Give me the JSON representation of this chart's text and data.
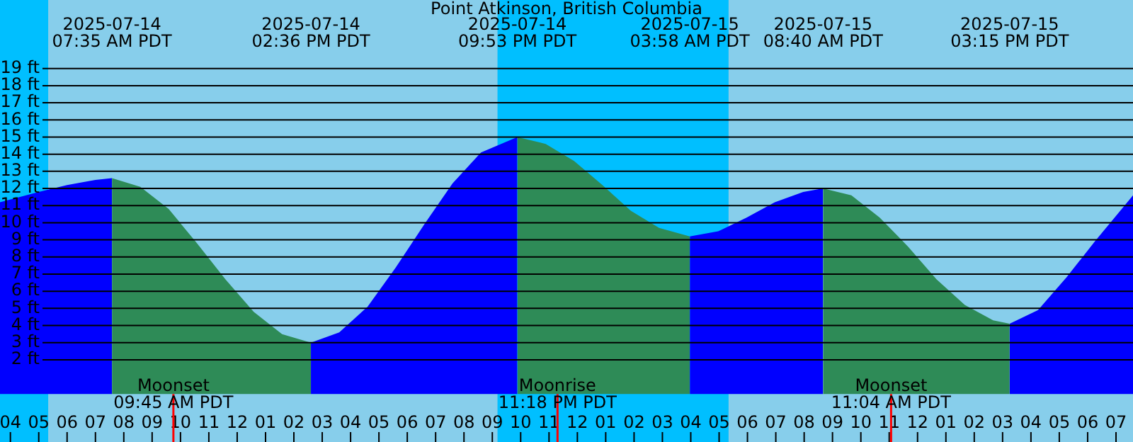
{
  "chart_data": {
    "type": "area",
    "title": "Point Atkinson, British Columbia",
    "xlim": [
      "2025-07-14T03:38",
      "2025-07-15T19:36"
    ],
    "ylim": [
      -2.8,
      23
    ],
    "xticks": [
      {
        "value": "2025-07-14T04:00",
        "label": "04"
      },
      {
        "value": "2025-07-14T05:00",
        "label": "05"
      },
      {
        "value": "2025-07-14T06:00",
        "label": "06"
      },
      {
        "value": "2025-07-14T07:00",
        "label": "07"
      },
      {
        "value": "2025-07-14T08:00",
        "label": "08"
      },
      {
        "value": "2025-07-14T09:00",
        "label": "09"
      },
      {
        "value": "2025-07-14T10:00",
        "label": "10"
      },
      {
        "value": "2025-07-14T11:00",
        "label": "11"
      },
      {
        "value": "2025-07-14T12:00",
        "label": "12"
      },
      {
        "value": "2025-07-14T13:00",
        "label": "01"
      },
      {
        "value": "2025-07-14T14:00",
        "label": "02"
      },
      {
        "value": "2025-07-14T15:00",
        "label": "03"
      },
      {
        "value": "2025-07-14T16:00",
        "label": "04"
      },
      {
        "value": "2025-07-14T17:00",
        "label": "05"
      },
      {
        "value": "2025-07-14T18:00",
        "label": "06"
      },
      {
        "value": "2025-07-14T19:00",
        "label": "07"
      },
      {
        "value": "2025-07-14T20:00",
        "label": "08"
      },
      {
        "value": "2025-07-14T21:00",
        "label": "09"
      },
      {
        "value": "2025-07-14T22:00",
        "label": "10"
      },
      {
        "value": "2025-07-14T23:00",
        "label": "11"
      },
      {
        "value": "2025-07-15T00:00",
        "label": "12"
      },
      {
        "value": "2025-07-15T01:00",
        "label": "01"
      },
      {
        "value": "2025-07-15T02:00",
        "label": "02"
      },
      {
        "value": "2025-07-15T03:00",
        "label": "03"
      },
      {
        "value": "2025-07-15T04:00",
        "label": "04"
      },
      {
        "value": "2025-07-15T05:00",
        "label": "05"
      },
      {
        "value": "2025-07-15T06:00",
        "label": "06"
      },
      {
        "value": "2025-07-15T07:00",
        "label": "07"
      },
      {
        "value": "2025-07-15T08:00",
        "label": "08"
      },
      {
        "value": "2025-07-15T09:00",
        "label": "09"
      },
      {
        "value": "2025-07-15T10:00",
        "label": "10"
      },
      {
        "value": "2025-07-15T11:00",
        "label": "11"
      },
      {
        "value": "2025-07-15T12:00",
        "label": "12"
      },
      {
        "value": "2025-07-15T13:00",
        "label": "01"
      },
      {
        "value": "2025-07-15T14:00",
        "label": "02"
      },
      {
        "value": "2025-07-15T15:00",
        "label": "03"
      },
      {
        "value": "2025-07-15T16:00",
        "label": "04"
      },
      {
        "value": "2025-07-15T17:00",
        "label": "05"
      },
      {
        "value": "2025-07-15T18:00",
        "label": "06"
      },
      {
        "value": "2025-07-15T19:00",
        "label": "07"
      }
    ],
    "yticks": [
      {
        "value": 2,
        "label": "2 ft"
      },
      {
        "value": 3,
        "label": "3 ft"
      },
      {
        "value": 4,
        "label": "4 ft"
      },
      {
        "value": 5,
        "label": "5 ft"
      },
      {
        "value": 6,
        "label": "6 ft"
      },
      {
        "value": 7,
        "label": "7 ft"
      },
      {
        "value": 8,
        "label": "8 ft"
      },
      {
        "value": 9,
        "label": "9 ft"
      },
      {
        "value": 10,
        "label": "10 ft"
      },
      {
        "value": 11,
        "label": "11 ft"
      },
      {
        "value": 12,
        "label": "12 ft"
      },
      {
        "value": 13,
        "label": "13 ft"
      },
      {
        "value": 14,
        "label": "14 ft"
      },
      {
        "value": 15,
        "label": "15 ft"
      },
      {
        "value": 16,
        "label": "16 ft"
      },
      {
        "value": 17,
        "label": "17 ft"
      },
      {
        "value": 18,
        "label": "18 ft"
      },
      {
        "value": 19,
        "label": "19 ft"
      }
    ],
    "grid": "y",
    "legend": false,
    "marker": "none",
    "series": [
      {
        "color": "#0000ff",
        "x": [
          "2025-07-14T03:38",
          "2025-07-14T05:00",
          "2025-07-14T06:00",
          "2025-07-14T07:00",
          "2025-07-14T07:35"
        ],
        "values": [
          11.2,
          11.8,
          12.2,
          12.5,
          12.6
        ]
      },
      {
        "color": "#2e8b57",
        "x": [
          "2025-07-14T07:35",
          "2025-07-14T08:35",
          "2025-07-14T09:35",
          "2025-07-14T10:35",
          "2025-07-14T11:35",
          "2025-07-14T12:35",
          "2025-07-14T13:35",
          "2025-07-14T14:36"
        ],
        "values": [
          12.6,
          12.1,
          10.8,
          8.8,
          6.7,
          4.8,
          3.5,
          3.0
        ]
      },
      {
        "color": "#0000ff",
        "x": [
          "2025-07-14T14:36",
          "2025-07-14T15:36",
          "2025-07-14T16:36",
          "2025-07-14T17:36",
          "2025-07-14T18:36",
          "2025-07-14T19:36",
          "2025-07-14T20:36",
          "2025-07-14T21:53"
        ],
        "values": [
          3.0,
          3.6,
          5.1,
          7.4,
          9.9,
          12.3,
          14.1,
          15.0
        ]
      },
      {
        "color": "#2e8b57",
        "x": [
          "2025-07-14T21:53",
          "2025-07-14T22:53",
          "2025-07-14T23:53",
          "2025-07-15T00:53",
          "2025-07-15T01:53",
          "2025-07-15T02:53",
          "2025-07-15T03:58"
        ],
        "values": [
          15.0,
          14.6,
          13.6,
          12.2,
          10.7,
          9.7,
          9.2
        ]
      },
      {
        "color": "#0000ff",
        "x": [
          "2025-07-15T03:58",
          "2025-07-15T04:58",
          "2025-07-15T05:58",
          "2025-07-15T06:58",
          "2025-07-15T07:58",
          "2025-07-15T08:40"
        ],
        "values": [
          9.2,
          9.5,
          10.3,
          11.2,
          11.8,
          12.0
        ]
      },
      {
        "color": "#2e8b57",
        "x": [
          "2025-07-15T08:40",
          "2025-07-15T09:40",
          "2025-07-15T10:40",
          "2025-07-15T11:40",
          "2025-07-15T12:40",
          "2025-07-15T13:40",
          "2025-07-15T14:40",
          "2025-07-15T15:15"
        ],
        "values": [
          12.0,
          11.6,
          10.3,
          8.6,
          6.7,
          5.2,
          4.3,
          4.1
        ]
      },
      {
        "color": "#0000ff",
        "x": [
          "2025-07-15T15:15",
          "2025-07-15T16:15",
          "2025-07-15T17:15",
          "2025-07-15T18:15",
          "2025-07-15T19:15",
          "2025-07-15T19:36"
        ],
        "values": [
          4.1,
          4.9,
          6.8,
          8.9,
          10.9,
          11.6
        ]
      }
    ],
    "bands": [
      {
        "axis": "x",
        "from": "2025-07-14T03:38",
        "to": "2025-07-14T05:20",
        "color": "#00bfff"
      },
      {
        "axis": "x",
        "from": "2025-07-14T21:11",
        "to": "2025-07-15T05:20",
        "color": "#00bfff"
      }
    ],
    "ref_lines": [
      {
        "axis": "x",
        "value": "2025-07-14T09:45",
        "label": "Moonset\n09:45 AM PDT",
        "color": "#ff0000"
      },
      {
        "axis": "x",
        "value": "2025-07-14T23:18",
        "label": "Moonrise\n11:18 PM PDT",
        "color": "#ff0000"
      },
      {
        "axis": "x",
        "value": "2025-07-15T11:04",
        "label": "Moonset\n11:04 AM PDT",
        "color": "#ff0000"
      }
    ],
    "annotations": [
      "2025-07-14\n07:35 AM PDT",
      "2025-07-14\n02:36 PM PDT",
      "2025-07-14\n09:53 PM PDT",
      "2025-07-15\n03:58 AM PDT",
      "2025-07-15\n08:40 AM PDT",
      "2025-07-15\n03:15 PM PDT"
    ]
  }
}
